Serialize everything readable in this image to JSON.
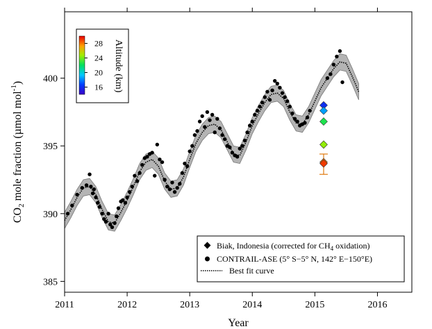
{
  "chart_data": {
    "type": "scatter",
    "xlabel": "Year",
    "ylabel": "CO₂ mole fraction (µmol mol⁻¹)",
    "ylabel_parts": {
      "pre": "CO",
      "sub": "2",
      "mid": " mole fraction (µmol mol",
      "sup": "-1",
      "post": ")"
    },
    "xlim": [
      2011.0,
      2016.55
    ],
    "ylim": [
      384.2,
      404.9
    ],
    "x_ticks": [
      2011,
      2012,
      2013,
      2014,
      2015,
      2016
    ],
    "x_tick_labels": [
      "2011",
      "2012",
      "2013",
      "2014",
      "2015",
      "2016"
    ],
    "y_ticks": [
      385,
      390,
      395,
      400
    ],
    "y_tick_labels": [
      "385",
      "390",
      "395",
      "400"
    ],
    "grid": false,
    "legend_placement": "bottom-right",
    "legend": [
      {
        "marker": "diamond",
        "label_pre": "Biak, Indonesia (corrected for CH",
        "label_sub": "4",
        "label_post": " oxidation)"
      },
      {
        "marker": "circle",
        "label_pre": "CONTRAIL-ASE (5° S−5° N, 142° E−150°E)",
        "label_sub": "",
        "label_post": ""
      },
      {
        "marker": "dotted-line",
        "label_pre": "Best fit curve",
        "label_sub": "",
        "label_post": ""
      }
    ],
    "colorbar": {
      "title": "Altitude (km)",
      "min": 14,
      "max": 30,
      "ticks": [
        16,
        20,
        24,
        28
      ],
      "tick_labels": [
        "16",
        "20",
        "24",
        "28"
      ],
      "colormap": "rainbow",
      "placement": "top-left"
    },
    "series": [
      {
        "name": "Best fit curve",
        "style": "dotted-line",
        "x": [
          2011.0,
          2011.1,
          2011.2,
          2011.3,
          2011.4,
          2011.5,
          2011.6,
          2011.7,
          2011.8,
          2011.9,
          2012.0,
          2012.1,
          2012.2,
          2012.3,
          2012.4,
          2012.5,
          2012.6,
          2012.7,
          2012.8,
          2012.9,
          2013.0,
          2013.1,
          2013.2,
          2013.3,
          2013.4,
          2013.5,
          2013.6,
          2013.7,
          2013.8,
          2013.9,
          2014.0,
          2014.1,
          2014.2,
          2014.3,
          2014.4,
          2014.5,
          2014.6,
          2014.7,
          2014.8,
          2014.9,
          2015.0,
          2015.1,
          2015.2,
          2015.3,
          2015.4,
          2015.5,
          2015.6,
          2015.7
        ],
        "y": [
          389.5,
          390.3,
          391.2,
          391.9,
          392.0,
          391.4,
          390.3,
          389.4,
          389.3,
          390.1,
          391.0,
          392.0,
          393.1,
          393.8,
          394.0,
          393.5,
          392.4,
          391.8,
          391.9,
          392.7,
          394.0,
          395.2,
          396.0,
          396.5,
          396.6,
          396.2,
          395.3,
          394.4,
          394.3,
          395.3,
          396.5,
          397.4,
          398.2,
          398.8,
          398.9,
          398.5,
          397.5,
          396.7,
          396.6,
          397.3,
          398.3,
          399.3,
          400.0,
          400.7,
          401.2,
          401.1,
          400.1,
          399.0
        ],
        "band_halfwidth": 0.6
      },
      {
        "name": "CONTRAIL-ASE (5° S−5° N, 142° E−150°E)",
        "style": "circle",
        "color": "#000000",
        "x": [
          2011.05,
          2011.12,
          2011.2,
          2011.28,
          2011.35,
          2011.4,
          2011.42,
          2011.45,
          2011.47,
          2011.5,
          2011.53,
          2011.56,
          2011.6,
          2011.63,
          2011.66,
          2011.7,
          2011.73,
          2011.76,
          2011.8,
          2011.83,
          2011.86,
          2011.9,
          2011.93,
          2011.97,
          2012.0,
          2012.04,
          2012.08,
          2012.12,
          2012.16,
          2012.2,
          2012.24,
          2012.28,
          2012.32,
          2012.36,
          2012.4,
          2012.44,
          2012.48,
          2012.52,
          2012.56,
          2012.6,
          2012.64,
          2012.68,
          2012.72,
          2012.76,
          2012.8,
          2012.84,
          2012.88,
          2012.92,
          2012.96,
          2013.0,
          2013.04,
          2013.08,
          2013.12,
          2013.16,
          2013.2,
          2013.24,
          2013.28,
          2013.32,
          2013.36,
          2013.4,
          2013.44,
          2013.48,
          2013.52,
          2013.56,
          2013.6,
          2013.64,
          2013.68,
          2013.72,
          2013.76,
          2013.8,
          2013.84,
          2013.88,
          2013.92,
          2013.96,
          2014.0,
          2014.04,
          2014.08,
          2014.12,
          2014.16,
          2014.2,
          2014.24,
          2014.28,
          2014.32,
          2014.36,
          2014.4,
          2014.44,
          2014.48,
          2014.52,
          2014.56,
          2014.6,
          2014.64,
          2014.68,
          2014.72,
          2014.76,
          2014.8,
          2014.84,
          2014.88,
          2014.92,
          2015.2,
          2015.25,
          2015.3,
          2015.35,
          2015.4,
          2015.44
        ],
        "y": [
          390.0,
          390.6,
          391.4,
          391.9,
          392.1,
          392.9,
          392.0,
          391.5,
          391.8,
          391.2,
          390.8,
          390.5,
          390.0,
          389.6,
          389.4,
          390.0,
          389.2,
          389.0,
          389.3,
          389.8,
          390.4,
          390.9,
          391.0,
          390.8,
          391.2,
          391.6,
          392.0,
          392.8,
          392.4,
          393.0,
          393.6,
          394.1,
          394.2,
          394.4,
          394.5,
          392.8,
          395.1,
          394.0,
          393.8,
          392.5,
          392.0,
          391.8,
          392.3,
          391.6,
          391.9,
          392.2,
          393.0,
          393.7,
          393.5,
          394.6,
          395.0,
          395.8,
          396.1,
          396.8,
          397.2,
          396.4,
          397.5,
          396.9,
          397.3,
          396.0,
          397.0,
          396.3,
          395.8,
          395.5,
          395.0,
          394.9,
          394.5,
          394.3,
          394.2,
          394.8,
          395.0,
          395.4,
          396.0,
          396.5,
          396.8,
          397.3,
          397.6,
          397.9,
          398.2,
          398.6,
          399.0,
          398.4,
          399.1,
          399.8,
          399.6,
          399.3,
          398.9,
          398.6,
          398.3,
          397.9,
          397.4,
          397.0,
          396.8,
          396.5,
          396.6,
          396.7,
          397.1,
          397.6,
          400.0,
          400.3,
          401.0,
          401.6,
          402.0,
          399.7
        ]
      },
      {
        "name": "Biak, Indonesia (corrected for CH4 oxidation)",
        "style": "diamond",
        "x": [
          2015.14,
          2015.14,
          2015.14,
          2015.14,
          2015.14,
          2015.14
        ],
        "y": [
          398.0,
          397.6,
          396.8,
          395.1,
          393.8,
          393.7
        ],
        "altitude_km": [
          16.0,
          18.5,
          22.5,
          24.5,
          28.0,
          29.0
        ],
        "error_bar": {
          "x": 2015.14,
          "low": 392.9,
          "high": 394.4
        }
      }
    ]
  }
}
